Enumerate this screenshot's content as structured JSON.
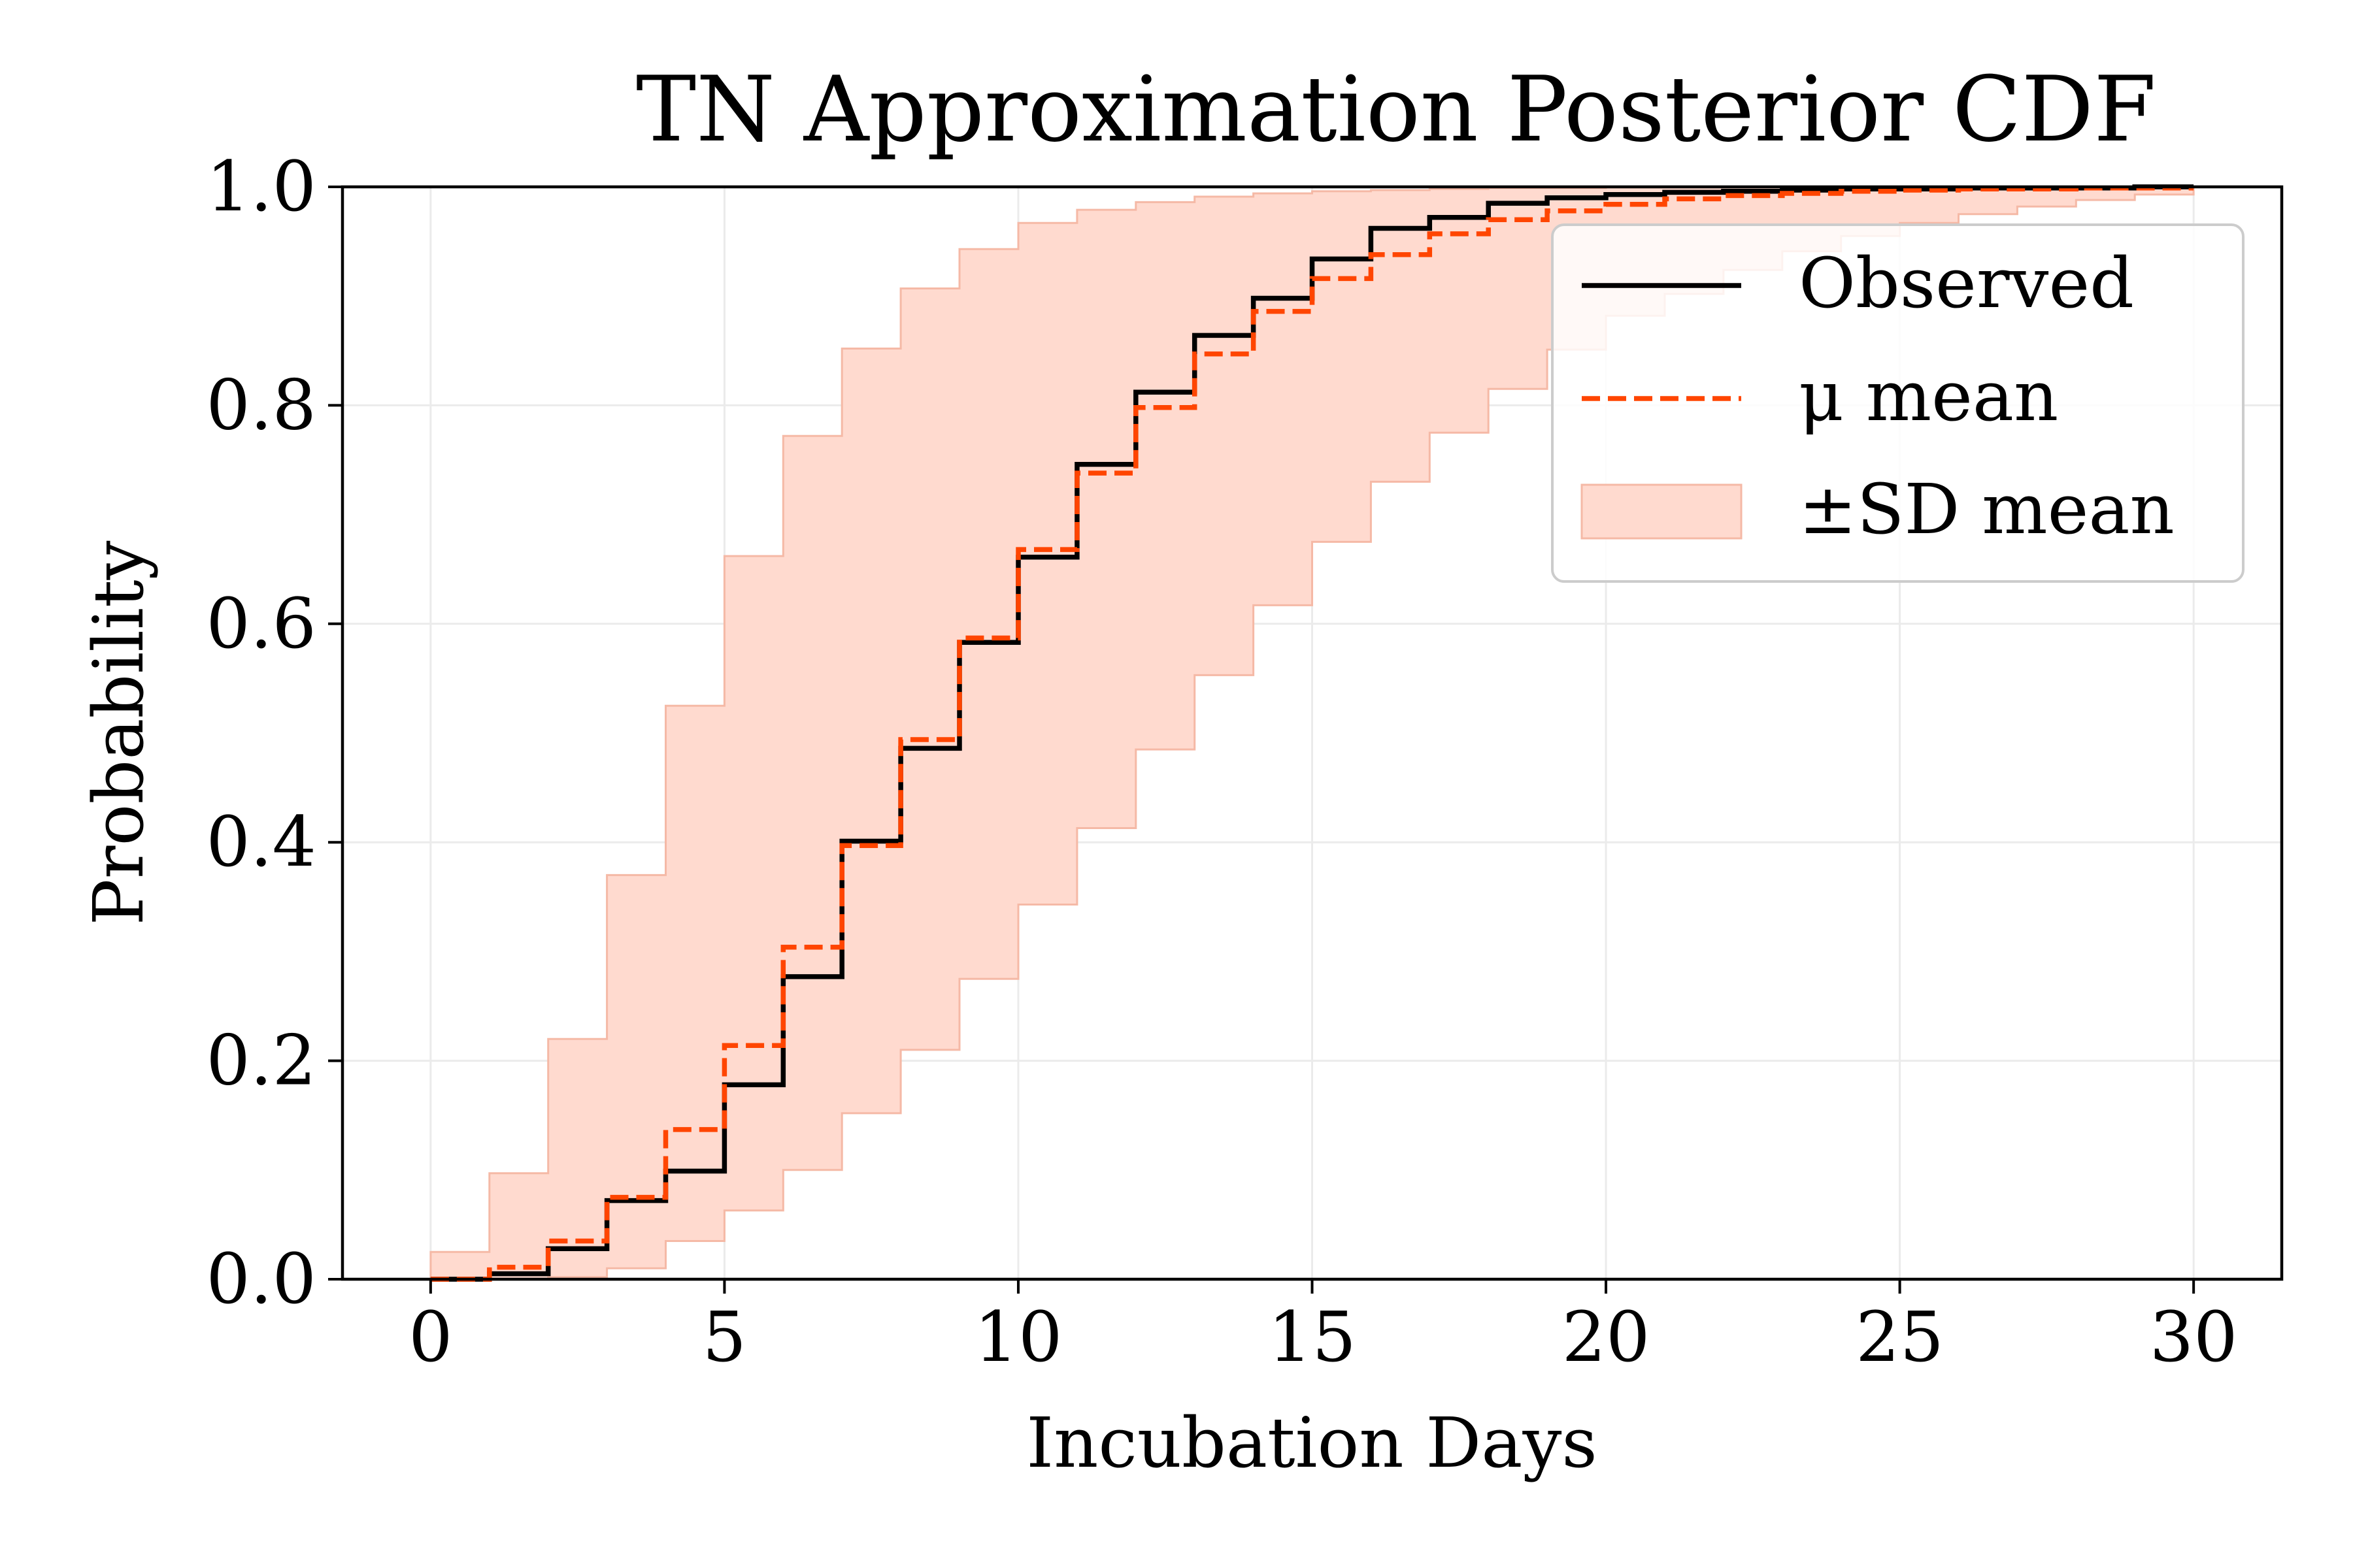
{
  "chart_data": {
    "type": "line",
    "title": "TN Approximation Posterior CDF",
    "xlabel": "Incubation Days",
    "ylabel": "Probability",
    "xlim": [
      -1.5,
      31.5
    ],
    "ylim": [
      0.0,
      1.0
    ],
    "xticks": [
      0,
      5,
      10,
      15,
      20,
      25,
      30
    ],
    "xtick_labels": [
      "0",
      "5",
      "10",
      "15",
      "20",
      "25",
      "30"
    ],
    "yticks": [
      0.0,
      0.2,
      0.4,
      0.6,
      0.8,
      1.0
    ],
    "ytick_labels": [
      "0.0",
      "0.2",
      "0.4",
      "0.6",
      "0.8",
      "1.0"
    ],
    "grid": true,
    "legend_position": "upper-right",
    "colors": {
      "observed": "#000000",
      "mu_mean": "#ff4500",
      "band_fill": "#ffdacf",
      "band_edge": "#f5b9a6"
    },
    "x": [
      0,
      1,
      2,
      3,
      4,
      5,
      6,
      7,
      8,
      9,
      10,
      11,
      12,
      13,
      14,
      15,
      16,
      17,
      18,
      19,
      20,
      21,
      22,
      23,
      24,
      25,
      26,
      27,
      28,
      29,
      30
    ],
    "series": [
      {
        "name": "Observed",
        "style": "solid-step",
        "values": [
          0.0,
          0.005,
          0.028,
          0.072,
          0.099,
          0.178,
          0.277,
          0.401,
          0.486,
          0.583,
          0.661,
          0.746,
          0.812,
          0.864,
          0.898,
          0.934,
          0.962,
          0.972,
          0.985,
          0.99,
          0.993,
          0.995,
          0.996,
          0.997,
          0.998,
          0.998,
          0.999,
          0.999,
          0.999,
          1.0,
          1.0
        ]
      },
      {
        "name": "μ mean",
        "style": "dashed-step",
        "values": [
          0.0,
          0.011,
          0.035,
          0.075,
          0.137,
          0.214,
          0.304,
          0.397,
          0.494,
          0.587,
          0.668,
          0.738,
          0.798,
          0.847,
          0.886,
          0.916,
          0.938,
          0.957,
          0.97,
          0.978,
          0.984,
          0.989,
          0.992,
          0.994,
          0.996,
          0.997,
          0.998,
          0.998,
          0.999,
          0.999,
          0.999
        ]
      },
      {
        "name": "±SD mean",
        "style": "band",
        "upper": [
          0.025,
          0.097,
          0.22,
          0.37,
          0.525,
          0.662,
          0.772,
          0.852,
          0.907,
          0.943,
          0.967,
          0.979,
          0.986,
          0.991,
          0.994,
          0.996,
          0.997,
          0.998,
          0.999,
          0.999,
          1.0,
          1.0,
          1.0,
          1.0,
          1.0,
          1.0,
          1.0,
          1.0,
          1.0,
          1.0,
          1.0
        ],
        "lower": [
          0.0,
          0.0,
          0.002,
          0.01,
          0.035,
          0.063,
          0.1,
          0.152,
          0.21,
          0.275,
          0.343,
          0.413,
          0.485,
          0.553,
          0.617,
          0.675,
          0.73,
          0.775,
          0.815,
          0.851,
          0.882,
          0.902,
          0.924,
          0.941,
          0.955,
          0.967,
          0.975,
          0.982,
          0.988,
          0.993,
          0.993
        ]
      }
    ]
  }
}
